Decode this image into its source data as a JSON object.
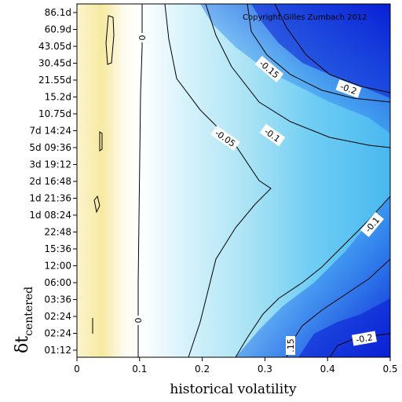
{
  "chart_data": {
    "type": "heatmap",
    "xlabel": "historical volatility",
    "ylabel_main": "δt",
    "ylabel_sub": "centered",
    "copyright": "Copyright Gilles Zumbach 2012",
    "xlim": [
      0,
      0.5
    ],
    "x_ticks": [
      "0",
      "0.1",
      "0.2",
      "0.3",
      "0.4",
      "0.5"
    ],
    "y_ticks": [
      "86.1d",
      "60.9d",
      "43.05d",
      "30.45d",
      "21.55d",
      "15.2d",
      "10.75d",
      "7d 14:24",
      "5d 09:36",
      "3d 19:12",
      "2d 16:48",
      "1d 21:36",
      "1d 08:24",
      "22:48",
      "15:36",
      "12:00",
      "06:00",
      "03:36",
      "02:24",
      "02:24",
      "01:12"
    ],
    "contour_levels": [
      0,
      -0.05,
      -0.1,
      -0.15,
      -0.2
    ],
    "contour_labels": [
      "0",
      "0",
      "-0.05",
      "-0.1",
      "-0.15",
      "-0.2",
      "-0.1",
      "-0.2",
      ".15"
    ],
    "colors": {
      "positive": "#f6e9a0",
      "zero": "#ffffff",
      "light_blue": "#a9e3f4",
      "mid_blue": "#40b4f0",
      "deep_blue": "#0a1fd6",
      "contour": "#000000"
    }
  }
}
